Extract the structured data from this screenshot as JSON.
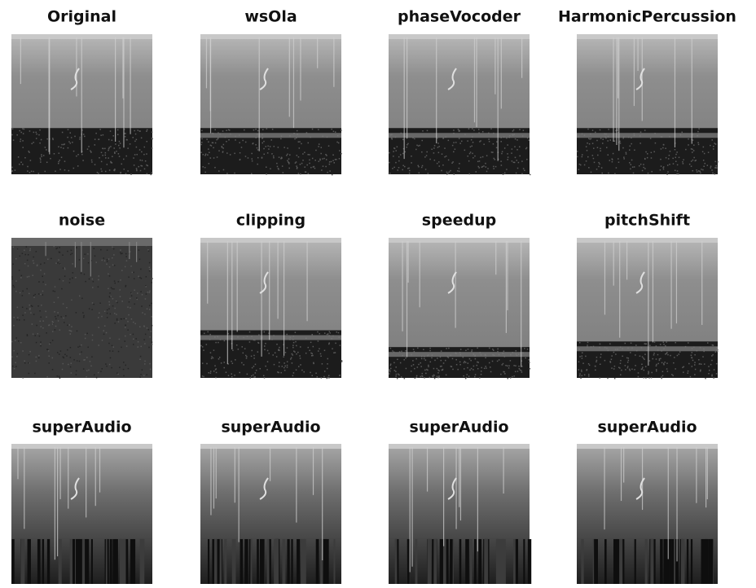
{
  "panels": [
    {
      "title": "Original"
    },
    {
      "title": "wsOla"
    },
    {
      "title": "phaseVocoder"
    },
    {
      "title": "HarmonicPercussion"
    },
    {
      "title": "noise"
    },
    {
      "title": "clipping"
    },
    {
      "title": "speedup"
    },
    {
      "title": "pitchShift"
    },
    {
      "title": "superAudio"
    },
    {
      "title": "superAudio"
    },
    {
      "title": "superAudio"
    },
    {
      "title": "superAudio"
    }
  ]
}
